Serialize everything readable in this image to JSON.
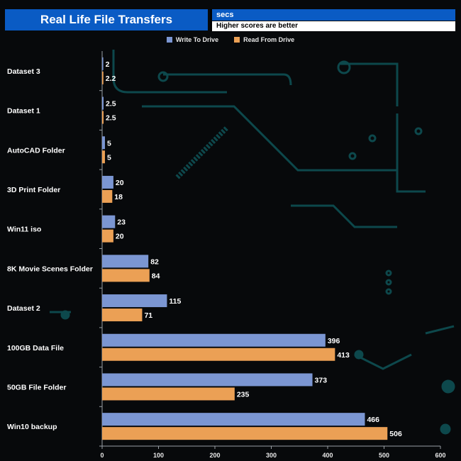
{
  "header": {
    "title": "Real Life File Transfers",
    "unit": "secs",
    "note": "Higher scores are better"
  },
  "colors": {
    "background": "#07090b",
    "header_blue": "#0a5bc4",
    "write": "#7b96d2",
    "read": "#eba055",
    "circuit": "#0f5e62"
  },
  "chart_data": {
    "type": "bar",
    "orientation": "horizontal",
    "title": "Real Life File Transfers",
    "xlabel": "secs",
    "ylabel": "",
    "xlim": [
      0,
      600
    ],
    "xticks": [
      0,
      100,
      200,
      300,
      400,
      500,
      600
    ],
    "legend_position": "top-center",
    "categories": [
      "Dataset 3",
      "Dataset 1",
      "AutoCAD Folder",
      "3D Print Folder",
      "Win11 iso",
      "8K Movie Scenes Folder",
      "Dataset 2",
      "100GB Data File",
      "50GB File Folder",
      "Win10 backup"
    ],
    "series": [
      {
        "name": "Write To  Drive",
        "color": "#7b96d2",
        "values": [
          2,
          2.5,
          5,
          20,
          23,
          82,
          115,
          396,
          373,
          466
        ]
      },
      {
        "name": "Read From  Drive",
        "color": "#eba055",
        "values": [
          2.2,
          2.5,
          5,
          18,
          20,
          84,
          71,
          413,
          235,
          506
        ]
      }
    ]
  }
}
